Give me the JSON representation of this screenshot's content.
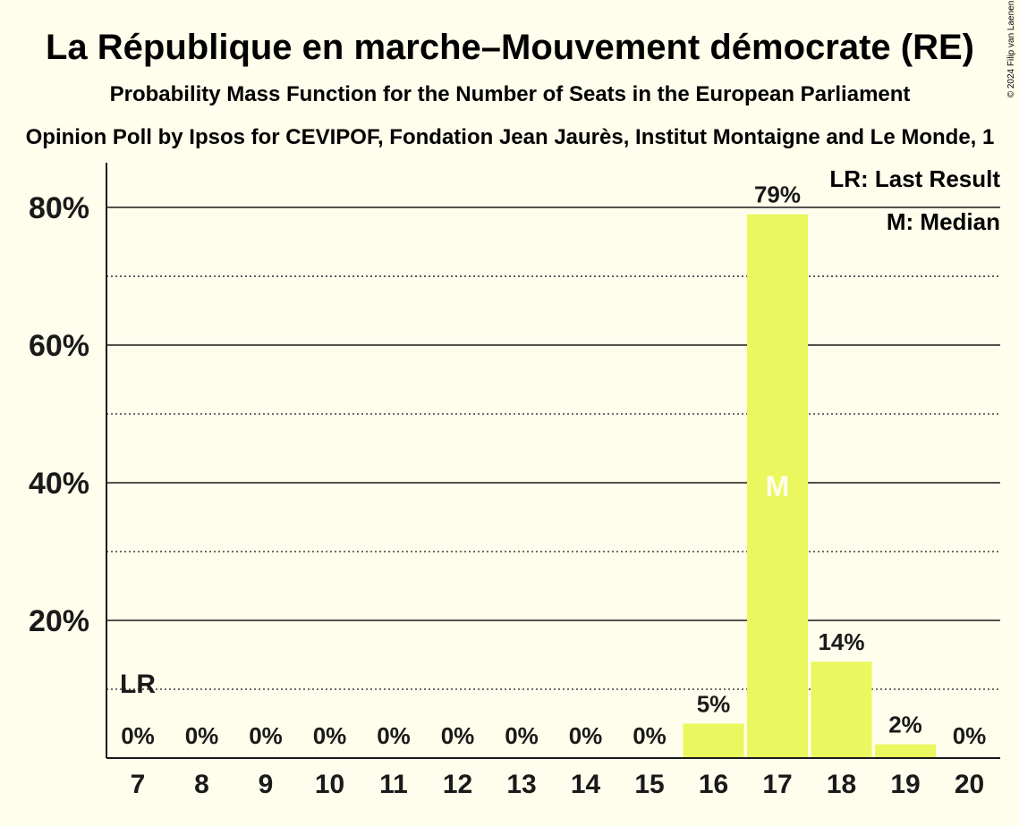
{
  "title": "La République en marche–Mouvement démocrate (RE)",
  "subtitle": "Probability Mass Function for the Number of Seats in the European Parliament",
  "source": "Opinion Poll by Ipsos for CEVIPOF, Fondation Jean Jaurès, Institut Montaigne and Le Monde, 1",
  "copyright": "© 2024 Filip van Laenen",
  "legend": {
    "last_result": "LR: Last Result",
    "median": "M: Median"
  },
  "markers": {
    "last_result_label": "LR",
    "median_label": "M"
  },
  "colors": {
    "background": "#fffdec",
    "bar": "#eaf75e",
    "text": "#1a1a1a",
    "median_text": "#fffdec"
  },
  "chart_data": {
    "type": "bar",
    "categories": [
      "7",
      "8",
      "9",
      "10",
      "11",
      "12",
      "13",
      "14",
      "15",
      "16",
      "17",
      "18",
      "19",
      "20"
    ],
    "values": [
      0,
      0,
      0,
      0,
      0,
      0,
      0,
      0,
      0,
      5,
      79,
      14,
      2,
      0
    ],
    "bar_labels": [
      "0%",
      "0%",
      "0%",
      "0%",
      "0%",
      "0%",
      "0%",
      "0%",
      "0%",
      "5%",
      "79%",
      "14%",
      "2%",
      "0%"
    ],
    "y_ticks": [
      {
        "value": 20,
        "label": "20%"
      },
      {
        "value": 40,
        "label": "40%"
      },
      {
        "value": 60,
        "label": "60%"
      },
      {
        "value": 80,
        "label": "80%"
      }
    ],
    "minor_gridlines": [
      10,
      30,
      50,
      70
    ],
    "ylim": [
      0,
      86.5
    ],
    "last_result_seats": "7",
    "last_result_level": 10,
    "median_seats": "17",
    "grid": true,
    "legend_position": "top-right"
  }
}
